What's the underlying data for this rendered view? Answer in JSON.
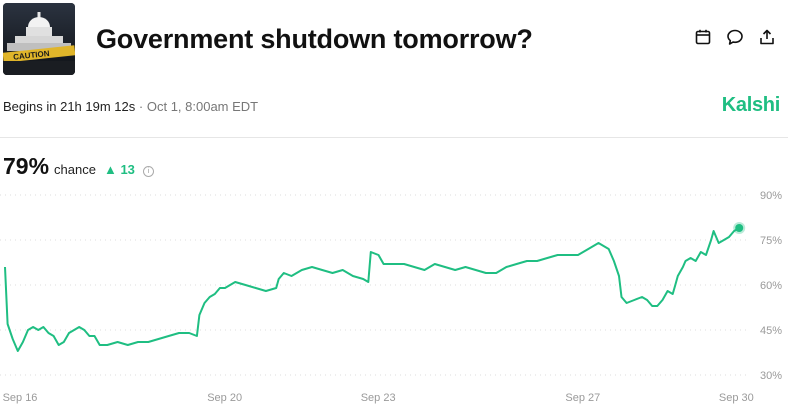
{
  "header": {
    "title": "Government shutdown tomorrow?",
    "thumbnail_caption": "CAUTION",
    "thumbnail_icon": "capitol-building-icon",
    "actions": [
      {
        "name": "calendar-icon"
      },
      {
        "name": "comment-icon"
      },
      {
        "name": "share-icon"
      }
    ]
  },
  "meta": {
    "begins_label": "Begins in 21h 19m 12s",
    "separator": "·",
    "date_time": "Oct 1, 8:00am EDT",
    "brand": "Kalshi"
  },
  "summary": {
    "chance_value": "79%",
    "chance_label": "chance",
    "delta_text": "▲ 13",
    "info_glyph": "i"
  },
  "colors": {
    "accent": "#1fbe82",
    "grid": "#dddddd",
    "axis_text": "#9a9a9a"
  },
  "chart_data": {
    "type": "line",
    "x_ticks": [
      "Sep 16",
      "Sep 20",
      "Sep 23",
      "Sep 27",
      "Sep 30"
    ],
    "x_tick_days": [
      16,
      20,
      23,
      27,
      30
    ],
    "xlim": [
      16,
      30.6
    ],
    "y_ticks": [
      "90%",
      "75%",
      "60%",
      "45%",
      "30%"
    ],
    "y_tick_values": [
      90,
      75,
      60,
      45,
      30
    ],
    "ylim": [
      30,
      90
    ],
    "grid": true,
    "grid_style": "dotted",
    "series": [
      {
        "color": "#1fbe82",
        "points": [
          [
            16.0,
            66
          ],
          [
            16.05,
            47
          ],
          [
            16.15,
            42
          ],
          [
            16.25,
            38
          ],
          [
            16.35,
            41
          ],
          [
            16.45,
            45
          ],
          [
            16.55,
            46
          ],
          [
            16.65,
            45
          ],
          [
            16.75,
            46
          ],
          [
            16.85,
            44
          ],
          [
            16.95,
            43
          ],
          [
            17.05,
            40
          ],
          [
            17.15,
            41
          ],
          [
            17.25,
            44
          ],
          [
            17.35,
            45
          ],
          [
            17.45,
            46
          ],
          [
            17.55,
            45
          ],
          [
            17.65,
            43
          ],
          [
            17.75,
            43
          ],
          [
            17.85,
            40
          ],
          [
            18.0,
            40
          ],
          [
            18.2,
            41
          ],
          [
            18.4,
            40
          ],
          [
            18.6,
            41
          ],
          [
            18.8,
            41
          ],
          [
            19.0,
            42
          ],
          [
            19.2,
            43
          ],
          [
            19.4,
            44
          ],
          [
            19.6,
            44
          ],
          [
            19.75,
            43
          ],
          [
            19.8,
            50
          ],
          [
            19.9,
            54
          ],
          [
            20.0,
            56
          ],
          [
            20.1,
            57
          ],
          [
            20.2,
            59
          ],
          [
            20.3,
            59
          ],
          [
            20.5,
            61
          ],
          [
            20.7,
            60
          ],
          [
            20.9,
            59
          ],
          [
            21.1,
            58
          ],
          [
            21.3,
            59
          ],
          [
            21.35,
            62
          ],
          [
            21.45,
            64
          ],
          [
            21.6,
            63
          ],
          [
            21.8,
            65
          ],
          [
            22.0,
            66
          ],
          [
            22.2,
            65
          ],
          [
            22.4,
            64
          ],
          [
            22.6,
            65
          ],
          [
            22.8,
            63
          ],
          [
            23.0,
            62
          ],
          [
            23.1,
            61
          ],
          [
            23.15,
            71
          ],
          [
            23.3,
            70
          ],
          [
            23.4,
            67
          ],
          [
            23.6,
            67
          ],
          [
            23.8,
            67
          ],
          [
            24.0,
            66
          ],
          [
            24.2,
            65
          ],
          [
            24.4,
            67
          ],
          [
            24.6,
            66
          ],
          [
            24.8,
            65
          ],
          [
            25.0,
            66
          ],
          [
            25.2,
            65
          ],
          [
            25.4,
            64
          ],
          [
            25.6,
            64
          ],
          [
            25.8,
            66
          ],
          [
            26.0,
            67
          ],
          [
            26.2,
            68
          ],
          [
            26.4,
            68
          ],
          [
            26.6,
            69
          ],
          [
            26.8,
            70
          ],
          [
            27.0,
            70
          ],
          [
            27.2,
            70
          ],
          [
            27.4,
            72
          ],
          [
            27.5,
            73
          ],
          [
            27.6,
            74
          ],
          [
            27.7,
            73
          ],
          [
            27.8,
            72
          ],
          [
            27.9,
            68
          ],
          [
            28.0,
            63
          ],
          [
            28.05,
            56
          ],
          [
            28.15,
            54
          ],
          [
            28.3,
            55
          ],
          [
            28.45,
            56
          ],
          [
            28.55,
            55
          ],
          [
            28.65,
            53
          ],
          [
            28.75,
            53
          ],
          [
            28.85,
            55
          ],
          [
            28.95,
            58
          ],
          [
            29.05,
            57
          ],
          [
            29.1,
            60
          ],
          [
            29.15,
            63
          ],
          [
            29.25,
            66
          ],
          [
            29.3,
            68
          ],
          [
            29.4,
            69
          ],
          [
            29.5,
            68
          ],
          [
            29.6,
            71
          ],
          [
            29.7,
            70
          ],
          [
            29.8,
            75
          ],
          [
            29.85,
            78
          ],
          [
            29.95,
            74
          ],
          [
            30.05,
            75
          ],
          [
            30.15,
            76
          ],
          [
            30.25,
            78
          ],
          [
            30.35,
            79
          ]
        ]
      }
    ],
    "last_point_marker": true
  }
}
